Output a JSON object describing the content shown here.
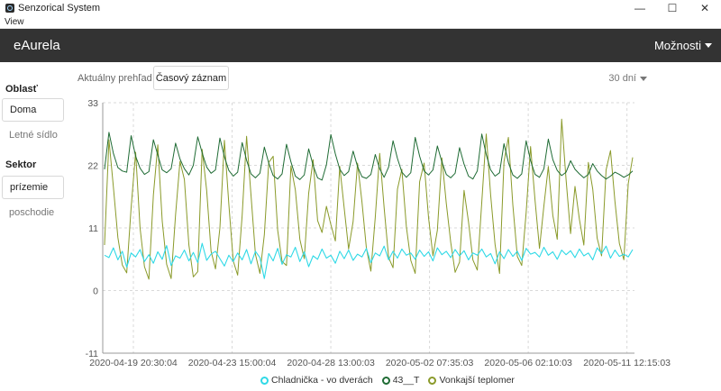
{
  "window": {
    "title": "Senzorical System",
    "minimize": "—",
    "maximize": "☐",
    "close": "✕"
  },
  "menu": {
    "items": [
      "View"
    ]
  },
  "navbar": {
    "brand": "eAurela",
    "options_label": "Možnosti"
  },
  "sidebar": {
    "area_title": "Oblasť",
    "area_items": [
      "Doma",
      "Letné sídlo"
    ],
    "sector_title": "Sektor",
    "sector_items": [
      "prízemie",
      "poschodie"
    ]
  },
  "toolbar": {
    "overview_label": "Aktuálny prehľad",
    "timeline_button": "Časový záznam",
    "period": "30 dní"
  },
  "colors": {
    "navbar": "#333333",
    "cyan": "#2fd9e6",
    "darkgreen": "#1f6b34",
    "olive": "#8a9a2a"
  },
  "chart_data": {
    "type": "line",
    "xlabel": "",
    "ylabel": "",
    "ylim": [
      -11,
      33
    ],
    "y_ticks": [
      "33",
      "22",
      "11",
      "0",
      "-11"
    ],
    "x_ticks": [
      "2020-04-19 20:30:04",
      "2020-04-23 15:00:04",
      "2020-04-28 13:00:03",
      "2020-05-02 07:35:03",
      "2020-05-06 02:10:03",
      "2020-05-11 12:15:03"
    ],
    "grid": true,
    "legend_position": "bottom",
    "series": [
      {
        "name": "Chladnička - vo dverách",
        "color": "#2fd9e6",
        "values": [
          6.2,
          5.8,
          7.5,
          5.4,
          6.9,
          4.1,
          6.6,
          5.9,
          7.2,
          5.1,
          6.3,
          4.8,
          6.8,
          5.5,
          7.9,
          4.4,
          6.1,
          5.7,
          7.1,
          5.2,
          6.7,
          4.9,
          8.3,
          5.3,
          6.4,
          6.9,
          5.6,
          4.3,
          6.2,
          5.1,
          6.6,
          5.4,
          7.2,
          4.7,
          6.9,
          5.8,
          2.1,
          6.5,
          5.2,
          7.4,
          4.6,
          6.3,
          5.9,
          7.6,
          5.1,
          6.8,
          4.2,
          6.1,
          5.5,
          7.3,
          5.7,
          6.2,
          4.8,
          6.9,
          5.6,
          7.1,
          5.3,
          6.4,
          5.9,
          7.4,
          4.9,
          6.6,
          6.1,
          7.8,
          5.4,
          6.9,
          5.7,
          7.3,
          6.2,
          6.6,
          5.5,
          7.1,
          6.0,
          6.8,
          5.2,
          7.5,
          6.3,
          6.9,
          5.8,
          7.2,
          6.1,
          7.0,
          5.4,
          6.6,
          6.2,
          7.3,
          5.9,
          6.5,
          4.7,
          6.8,
          5.6,
          7.2,
          6.0,
          6.9,
          5.3,
          7.4,
          6.4,
          6.7,
          5.9,
          7.6,
          6.2,
          6.8,
          5.5,
          7.1,
          6.3,
          7.0,
          5.8,
          7.3,
          6.1,
          6.6,
          5.4,
          7.5,
          6.5,
          7.8,
          5.7,
          7.1,
          6.0,
          6.4,
          5.9,
          7.2
        ]
      },
      {
        "name": "43__T",
        "color": "#1f6b34",
        "values": [
          21.3,
          27.8,
          24.1,
          21.6,
          21.0,
          20.8,
          27.2,
          23.6,
          21.5,
          20.4,
          20.9,
          26.5,
          23.8,
          21.2,
          20.7,
          21.4,
          25.9,
          23.1,
          21.4,
          20.3,
          22.0,
          27.0,
          24.2,
          21.7,
          20.6,
          21.2,
          26.8,
          23.5,
          21.1,
          20.1,
          20.8,
          26.0,
          22.9,
          20.5,
          19.8,
          20.6,
          25.2,
          22.4,
          20.2,
          19.6,
          20.5,
          25.7,
          22.6,
          20.1,
          19.5,
          20.3,
          24.9,
          22.0,
          19.8,
          19.4,
          22.1,
          27.4,
          24.0,
          21.3,
          20.2,
          20.9,
          24.5,
          21.8,
          20.0,
          19.7,
          20.4,
          23.9,
          21.4,
          19.9,
          21.7,
          26.3,
          23.2,
          20.8,
          19.9,
          20.7,
          26.9,
          23.6,
          21.0,
          20.3,
          21.2,
          25.4,
          22.6,
          20.4,
          19.8,
          20.6,
          25.1,
          22.2,
          20.1,
          19.6,
          21.0,
          27.5,
          23.9,
          21.2,
          20.1,
          20.7,
          25.8,
          22.5,
          20.3,
          19.7,
          20.5,
          26.3,
          22.8,
          20.4,
          19.9,
          21.4,
          26.6,
          23.0,
          21.1,
          20.2,
          20.8,
          22.8,
          21.3,
          20.5,
          19.8,
          20.4,
          22.3,
          21.0,
          20.2,
          19.6,
          20.1,
          20.8,
          20.4,
          19.9,
          20.3,
          21.0
        ]
      },
      {
        "name": "Vonkajší teplomer",
        "color": "#8a9a2a",
        "values": [
          8.0,
          26.5,
          18.2,
          9.3,
          4.5,
          3.1,
          14.6,
          24.3,
          11.0,
          4.2,
          2.0,
          16.8,
          25.6,
          12.2,
          4.6,
          2.1,
          13.3,
          22.7,
          19.5,
          8.0,
          2.4,
          3.3,
          24.8,
          17.6,
          6.9,
          3.8,
          11.0,
          26.4,
          15.2,
          5.2,
          2.7,
          13.2,
          27.1,
          16.8,
          6.4,
          3.0,
          9.8,
          22.5,
          23.6,
          10.6,
          5.1,
          4.4,
          21.9,
          17.7,
          9.0,
          5.6,
          17.1,
          23.0,
          12.3,
          10.2,
          14.8,
          11.6,
          8.7,
          21.8,
          14.5,
          7.3,
          12.1,
          22.4,
          15.6,
          7.5,
          3.4,
          12.9,
          24.1,
          14.6,
          5.8,
          4.0,
          17.8,
          21.3,
          11.2,
          5.3,
          3.0,
          19.1,
          22.4,
          12.8,
          6.1,
          10.6,
          23.3,
          15.3,
          8.5,
          3.2,
          5.0,
          17.6,
          12.1,
          5.4,
          3.6,
          15.6,
          27.5,
          16.8,
          8.1,
          3.0,
          22.6,
          26.9,
          15.1,
          6.0,
          4.4,
          13.7,
          25.3,
          15.8,
          7.4,
          14.9,
          21.8,
          13.2,
          9.0,
          30.1,
          19.5,
          10.0,
          18.3,
          12.5,
          8.0,
          22.5,
          17.8,
          9.2,
          6.1,
          21.2,
          24.6,
          15.7,
          8.3,
          5.4,
          18.8,
          23.4
        ]
      }
    ]
  }
}
